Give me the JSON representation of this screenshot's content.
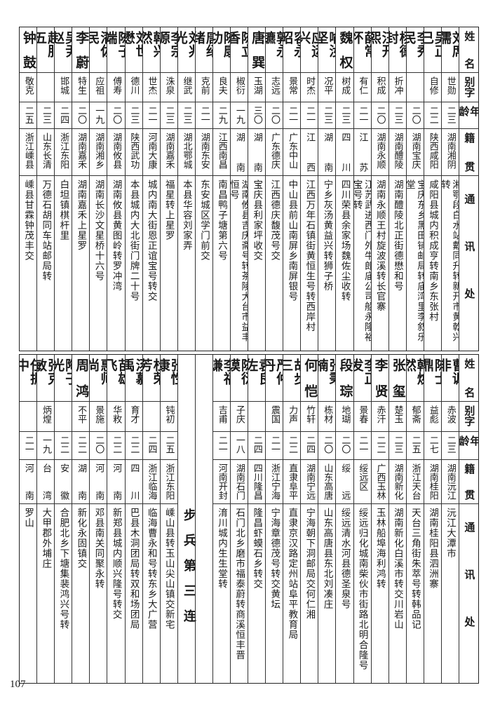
{
  "header": {
    "name": "姓名",
    "zi": "别字",
    "age": "年龄",
    "origin": "籍贯",
    "address": "通讯处"
  },
  "top": {
    "rows": [
      {
        "name": "刘席儒",
        "zi": "世勋",
        "age": "二三",
        "origin": "湖南湘阴",
        "address": "湘鄂段白水站戴同升转新开市黄乾兴转"
      },
      {
        "name": "吴正己",
        "zi": "自修",
        "age": "二二",
        "origin": "陕西咸阳",
        "address": "咸阳县城内积成亨转南乡东张村"
      },
      {
        "name": "李秀民",
        "zi": "",
        "age": "二〇",
        "origin": "湖南宝庆",
        "address": "宝庆东乡黑田铺邮局转庙湾里李叙乐堂"
      },
      {
        "name": "杨德封",
        "zi": "折冲",
        "age": "二三",
        "origin": "湖南醴陵",
        "address": "湖南醴陵北正街德懋和号"
      },
      {
        "name": "汪开熙",
        "zi": "积成",
        "age": "二〇",
        "origin": "湖南永顺",
        "address": "湖南永顺王村旋波溪转长官寨"
      },
      {
        "name": "薛常怀",
        "zi": "有仁",
        "age": "二一",
        "origin": "江苏",
        "address": "江苏武进西门外牛郎庙公司船永隆裕宝号转"
      },
      {
        "name": "魏权",
        "zi": "树成",
        "age": "二三",
        "origin": "四川",
        "address": "四川荣县余家场魏佐尘收转"
      },
      {
        "name": "喻汝坚",
        "zi": "况平",
        "age": "二三",
        "origin": "湖南",
        "address": "宁乡灰汤黄益兴转狮子桥"
      },
      {
        "name": "应运兴",
        "zi": "时杰",
        "age": "二一",
        "origin": "江西",
        "address": "江西万年石镇街黄恒生号转西岸村"
      },
      {
        "name": "容永昭",
        "zi": "景常",
        "age": "二一",
        "origin": "广东中山",
        "address": "中山县前山南屏乡南屏银号"
      },
      {
        "name": "郭永镳",
        "zi": "志远",
        "age": "二〇",
        "origin": "广东德庆",
        "address": "江西德庆馥茂号交"
      },
      {
        "name": "唐巽",
        "zi": "玉湖",
        "age": "三〇",
        "origin": "湖南",
        "address": "宝庆县利家坪收交"
      },
      {
        "name": "陈立香",
        "zi": "椒衍",
        "age": "一九",
        "origin": "湖南",
        "address": "湖南攸县吉庆斋号转茶陵大台市益丰恒号"
      },
      {
        "name": "陈康功",
        "zi": "良夫",
        "age": "二九",
        "origin": "江西南昌",
        "address": "南昌鸭子塘第六号"
      },
      {
        "name": "唐绍绪",
        "zi": "克前",
        "age": "二一",
        "origin": "湖南东安",
        "address": "东安城区学门前交"
      },
      {
        "name": "刘兆光",
        "zi": "继武",
        "age": "二三",
        "origin": "湖北鄂城",
        "address": "本县华容刘家弄"
      },
      {
        "name": "李宗源",
        "zi": "洙泉",
        "age": "二三",
        "origin": "湖南嘉禾",
        "address": "福星转上星罗"
      },
      {
        "name": "韩兴然",
        "zi": "世杰",
        "age": "二一",
        "origin": "河南大康",
        "address": "城内南大街恩正谊宝号转交"
      },
      {
        "name": "刘世懋",
        "zi": "德川",
        "age": "二三",
        "origin": "陕西武功",
        "address": "本县城内大北街门牌二十号"
      },
      {
        "name": "陈子端",
        "zi": "傅寿",
        "age": "二〇",
        "origin": "湖南攸县",
        "address": "湖南攸县黄图岭转罗冲湾"
      },
      {
        "name": "潘佐民",
        "zi": "应祖",
        "age": "一九",
        "origin": "湖南湘乡",
        "address": "湖南长沙文星桥十六号"
      },
      {
        "name": "李蔚",
        "zi": "特生",
        "age": "二〇",
        "origin": "湖南嘉禾",
        "address": "湖南嘉禾上星罗"
      },
      {
        "name": "吴尹赵",
        "zi": "邯城",
        "age": "二四",
        "origin": "浙江东阳",
        "address": "白坦镇棋杆里"
      },
      {
        "name": "赵服五",
        "zi": "",
        "age": "二三",
        "origin": "山东长清",
        "address": "万德石胡同车站邮局转"
      },
      {
        "name": "钟鼓",
        "zi": "敬克",
        "age": "二五",
        "origin": "浙江嵊县",
        "address": "嵊县甘霖钟茂丰交"
      }
    ]
  },
  "bottom": {
    "rows_right": [
      {
        "name": "曹讽非",
        "zi": "赤波",
        "age": "二三",
        "origin": "湖南沅江",
        "address": "沅江大潭市"
      },
      {
        "name": "陈士鼎",
        "zi": "益彪",
        "age": "二七",
        "origin": "湖南桂阳",
        "address": "湖南桂阳县泗洲寨"
      },
      {
        "name": "韩焕然",
        "zi": "郁斋",
        "age": "二五",
        "origin": "浙江天台",
        "address": "天台三角街朱萃号转韩品记"
      },
      {
        "name": "张玺",
        "zi": "楚玉",
        "age": "二三",
        "origin": "湖南新化",
        "address": "湖南新化白溪市转交川岩山"
      },
      {
        "name": "李贤",
        "zi": "赤汗",
        "age": "二二",
        "origin": "广西玉林",
        "address": "玉林船埠海利鸿转"
      },
      {
        "name": "李正发",
        "zi": "景春",
        "age": "二一",
        "origin": "绥远区",
        "address": "绥远归化城南柴伙市街路北明合隆号"
      },
      {
        "name": "段琮",
        "zi": "地瑚",
        "age": "二〇",
        "origin": "绥远",
        "address": "绥远清水河县德圣泉号"
      },
      {
        "name": "张秉楠",
        "zi": "栋材",
        "age": "二〇",
        "origin": "山东高唐",
        "address": "山东高唐县东北刘凑庄"
      },
      {
        "name": "何恺",
        "zi": "竹轩",
        "age": "二四",
        "origin": "湖南宁远",
        "address": "宁海朝下洞邮局交何仁湘"
      },
      {
        "name": "胡步三",
        "zi": "力声",
        "age": "二二",
        "origin": "直隶阜平",
        "address": "直隶京汉路定州站阜平教育局"
      },
      {
        "name": "严仲丹",
        "zi": "震国",
        "age": "二一",
        "origin": "浙江宁海",
        "address": "宁海章德茂号转交黄坛"
      },
      {
        "name": "袁良佐",
        "zi": "",
        "age": "二四",
        "origin": "四川隆昌",
        "address": "隆昌虾蟆石乡转交"
      },
      {
        "name": "陈衍谟",
        "zi": "子庆",
        "age": "一八",
        "origin": "湖南石门",
        "address": "石门北乡磨市福泰蔚转商溪恒丰晋"
      },
      {
        "name": "李福谦",
        "zi": "吉甫",
        "age": "二一",
        "origin": "河南开封",
        "address": "淯川城内生生堂转"
      }
    ],
    "unit_label": "步兵第三连",
    "rows_left": [
      {
        "name": "张性康",
        "zi": "钝初",
        "age": "二五",
        "origin": "浙江东阳",
        "address": "嵊山县转玉山尖山镇交新宅"
      },
      {
        "name": "杜荣芳",
        "zi": "",
        "age": "二四",
        "origin": "浙江临海",
        "address": "临海曹永和号转东乡大广营"
      },
      {
        "name": "汤慕禹",
        "zi": "育才",
        "age": "二二",
        "origin": "四川",
        "address": "巴县木洞团局转双和场团局"
      },
      {
        "name": "苗雄飞",
        "zi": "华敉",
        "age": "二二",
        "origin": "河南",
        "address": "新郑县城内顺兴隆号转交"
      },
      {
        "name": "惠师尚",
        "zi": "景施",
        "age": "二〇",
        "origin": "河南",
        "address": "邓县南关同聚永转"
      },
      {
        "name": "周鸿",
        "zi": "不平",
        "age": "二二",
        "origin": "湖南",
        "address": "新化永固镇交"
      },
      {
        "name": "陶子光",
        "zi": "",
        "age": "二二",
        "origin": "安徽",
        "address": "合肥北乡下塘集裴鸿兴号转"
      },
      {
        "name": "张克敏",
        "zi": "炳煌",
        "age": "一九",
        "origin": "台湾",
        "address": "大甲郡外埔庄"
      },
      {
        "name": "任振中",
        "zi": "",
        "age": "二一",
        "origin": "河南",
        "address": "罗山"
      }
    ]
  },
  "page_number": "107"
}
